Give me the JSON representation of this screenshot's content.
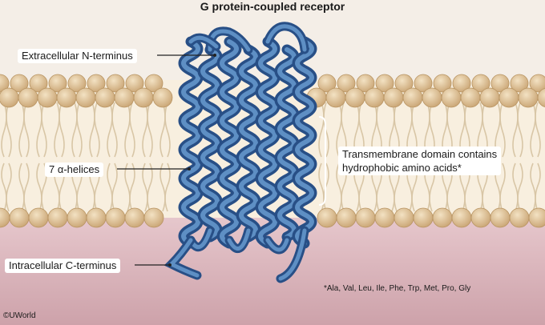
{
  "title": "G protein-coupled receptor",
  "labels": {
    "n_terminus": "Extracellular N-terminus",
    "helices": "7 α-helices",
    "transmembrane_line1": "Transmembrane domain contains",
    "transmembrane_line2": "hydrophobic amino acids*",
    "c_terminus": "Intracellular C-terminus"
  },
  "footnote": "*Ala, Val, Leu, Ile, Phe, Trp, Met, Pro, Gly",
  "copyright": "©UWorld",
  "colors": {
    "extracellular": "#f4eee7",
    "intracellular": "#dcb6bd",
    "head": "#dfc49a",
    "tail": "#f5ead6",
    "helix_dark": "#284f86",
    "helix_light": "#5e8fc4"
  }
}
